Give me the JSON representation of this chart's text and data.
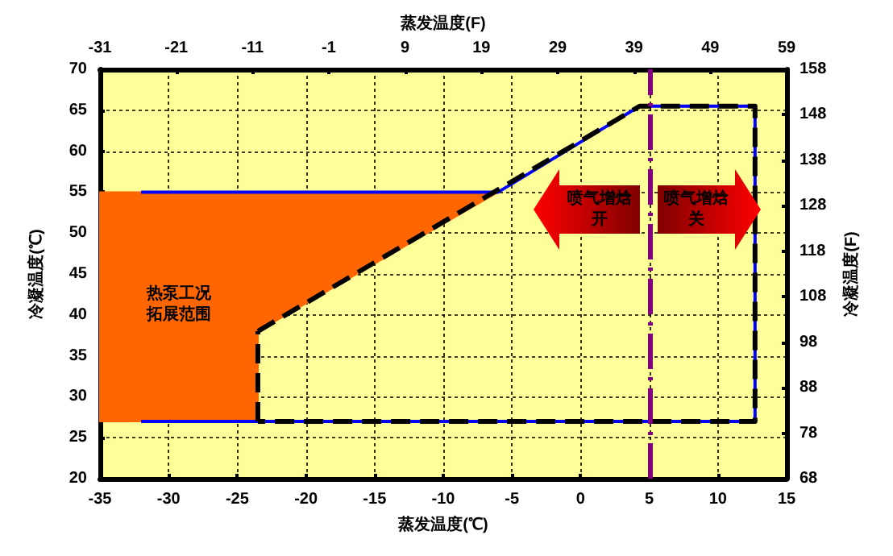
{
  "chart_data": {
    "type": "line",
    "xlabel": "蒸发温度(℃)",
    "x2label": "蒸发温度(F)",
    "ylabel": "冷凝温度(℃)",
    "y2label": "冷凝温度(F)",
    "xlim": [
      -35,
      15
    ],
    "xticks": [
      -35,
      -30,
      -25,
      -20,
      -15,
      -10,
      -5,
      0,
      5,
      10,
      15
    ],
    "x2lim": [
      -31,
      59
    ],
    "x2ticks": [
      -31,
      -21,
      -11,
      -1,
      9,
      19,
      29,
      39,
      49,
      59
    ],
    "ylim": [
      20,
      70
    ],
    "yticks": [
      20,
      25,
      30,
      35,
      40,
      45,
      50,
      55,
      60,
      65,
      70
    ],
    "y2lim": [
      68,
      158
    ],
    "y2ticks": [
      68,
      78,
      88,
      98,
      108,
      118,
      128,
      138,
      148,
      158
    ],
    "grid": true,
    "marker": "none",
    "series": [
      {
        "color": "#0000ff",
        "line_style": "solid",
        "x": [
          -32,
          12.7,
          12.7,
          4.3,
          -6,
          -32
        ],
        "values": [
          27,
          27,
          65.5,
          65.5,
          55,
          55
        ]
      },
      {
        "color": "#000000",
        "line_style": "dashed",
        "x": [
          -23.5,
          4.3,
          12.7,
          12.7,
          -23.5
        ],
        "values": [
          38,
          65.5,
          65.5,
          27,
          27
        ]
      },
      {
        "color": "#000000",
        "line_style": "dashed",
        "x": [
          -23.5,
          -23.5
        ],
        "values": [
          27,
          38
        ]
      },
      {
        "type": "area",
        "color": "#ff6600",
        "x": [
          -35,
          -6,
          -23.5,
          -23.5,
          -35
        ],
        "values": [
          55,
          55,
          38,
          27,
          27
        ]
      }
    ],
    "ref_lines": [
      {
        "axis": "x",
        "value": 5,
        "color": "#800080",
        "line_style": "dashed"
      }
    ],
    "annotations": [
      "热泵工况拓展范围",
      "喷气增焓开",
      "喷气增焓关"
    ]
  }
}
